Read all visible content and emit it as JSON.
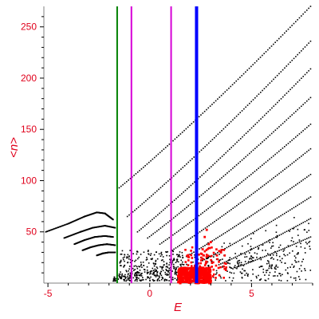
{
  "chart_data": {
    "type": "scatter",
    "xlabel": "E",
    "ylabel": "<n>",
    "xlim": [
      -5.2,
      8.0
    ],
    "ylim": [
      0,
      270
    ],
    "x_ticks": [
      {
        "value": -5,
        "label": "-5"
      },
      {
        "value": 0,
        "label": "0"
      },
      {
        "value": 5,
        "label": "5"
      }
    ],
    "y_ticks": [
      {
        "value": 50,
        "label": "50"
      },
      {
        "value": 100,
        "label": "100"
      },
      {
        "value": 150,
        "label": "150"
      },
      {
        "value": 200,
        "label": "200"
      },
      {
        "value": 250,
        "label": "250"
      }
    ],
    "grid": false,
    "vertical_lines": [
      {
        "x": -1.6,
        "color": "#008000"
      },
      {
        "x": -0.9,
        "color": "#d600d6"
      },
      {
        "x": 1.05,
        "color": "#d600d6"
      },
      {
        "x": 2.3,
        "color": "#0000ff"
      }
    ],
    "black_branches": [
      {
        "x_start": -1.5,
        "x_end": 7.9,
        "y_start": 93,
        "y_end": 270
      },
      {
        "x_start": -1.1,
        "x_end": 7.9,
        "y_start": 65,
        "y_end": 236
      },
      {
        "x_start": -0.6,
        "x_end": 7.9,
        "y_start": 50,
        "y_end": 209
      },
      {
        "x_start": -0.1,
        "x_end": 7.9,
        "y_start": 44,
        "y_end": 181
      },
      {
        "x_start": 0.5,
        "x_end": 7.9,
        "y_start": 38,
        "y_end": 155
      },
      {
        "x_start": 1.1,
        "x_end": 7.9,
        "y_start": 32,
        "y_end": 131
      },
      {
        "x_start": 1.8,
        "x_end": 7.9,
        "y_start": 26,
        "y_end": 106
      },
      {
        "x_start": 2.6,
        "x_end": 7.9,
        "y_start": 22,
        "y_end": 84
      },
      {
        "x_start": 3.4,
        "x_end": 7.9,
        "y_start": 18,
        "y_end": 63
      },
      {
        "x_start": 4.2,
        "x_end": 7.9,
        "y_start": 15,
        "y_end": 45
      }
    ],
    "black_left_curves": [
      {
        "points": [
          [
            -5.1,
            50
          ],
          [
            -4.0,
            58
          ],
          [
            -3.2,
            65
          ],
          [
            -2.6,
            69
          ],
          [
            -2.2,
            68
          ],
          [
            -1.8,
            62
          ]
        ]
      },
      {
        "points": [
          [
            -4.2,
            44
          ],
          [
            -3.4,
            50
          ],
          [
            -2.8,
            54
          ],
          [
            -2.2,
            56
          ],
          [
            -1.7,
            54
          ]
        ]
      },
      {
        "points": [
          [
            -3.7,
            38
          ],
          [
            -3.2,
            42
          ],
          [
            -2.7,
            45
          ],
          [
            -2.2,
            46
          ],
          [
            -1.8,
            45
          ]
        ]
      },
      {
        "points": [
          [
            -3.3,
            32
          ],
          [
            -2.9,
            35
          ],
          [
            -2.5,
            37
          ],
          [
            -2.1,
            38
          ],
          [
            -1.7,
            37
          ]
        ]
      },
      {
        "points": [
          [
            -2.6,
            27
          ],
          [
            -2.3,
            29
          ],
          [
            -2.0,
            30
          ],
          [
            -1.7,
            30
          ]
        ]
      }
    ],
    "red_cluster": {
      "x_range": [
        1.2,
        3.8
      ],
      "y_range": [
        0,
        55
      ],
      "core_x_range": [
        1.4,
        3.0
      ],
      "core_y_range": [
        0,
        15
      ]
    }
  }
}
